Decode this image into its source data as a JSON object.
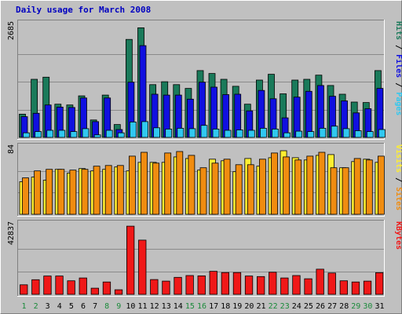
{
  "chart_data": {
    "type": "bar",
    "title": "Daily usage for March 2008",
    "categories": [
      "1",
      "2",
      "3",
      "4",
      "5",
      "6",
      "7",
      "8",
      "9",
      "10",
      "11",
      "12",
      "13",
      "14",
      "15",
      "16",
      "17",
      "18",
      "19",
      "20",
      "21",
      "22",
      "23",
      "24",
      "25",
      "26",
      "27",
      "28",
      "29",
      "30",
      "31"
    ],
    "weekend_days": [
      "1",
      "2",
      "8",
      "9",
      "15",
      "16",
      "22",
      "23",
      "29",
      "30"
    ],
    "panels": [
      {
        "id": "hits_files_pages",
        "ymax_label": "2685",
        "ylim": [
          0,
          2685
        ],
        "legend": [
          "Pages",
          "Files",
          "Hits"
        ],
        "series": [
          {
            "name": "Hits",
            "color": "#1a7a5a",
            "values": [
              560,
              1400,
              1450,
              800,
              780,
              1000,
              420,
              1020,
              310,
              2360,
              2640,
              1270,
              1340,
              1270,
              1180,
              1610,
              1540,
              1400,
              1230,
              800,
              1380,
              1520,
              1050,
              1380,
              1400,
              1500,
              1250,
              1040,
              850,
              840,
              1610
            ]
          },
          {
            "name": "Files",
            "color": "#1010e0",
            "values": [
              500,
              580,
              780,
              730,
              720,
              950,
              380,
              950,
              190,
              1330,
              2210,
              1040,
              1020,
              1020,
              920,
              1330,
              1210,
              1030,
              1040,
              640,
              1130,
              930,
              470,
              970,
              1110,
              1250,
              990,
              880,
              590,
              690,
              1180
            ]
          },
          {
            "name": "Pages",
            "color": "#30c8f0",
            "values": [
              110,
              140,
              170,
              170,
              140,
              210,
              60,
              170,
              110,
              370,
              380,
              230,
              200,
              220,
              210,
              290,
              200,
              170,
              180,
              170,
              220,
              200,
              110,
              150,
              140,
              220,
              270,
              210,
              160,
              140,
              190
            ]
          }
        ]
      },
      {
        "id": "visits_sites",
        "ymax_label": "84",
        "ylim": [
          0,
          84
        ],
        "legend": [
          "Sites",
          "Visits"
        ],
        "series": [
          {
            "name": "Visits",
            "color": "#ffee30",
            "values": [
              42,
              48,
              44,
              58,
              53,
              59,
              56,
              58,
              61,
              56,
              67,
              67,
              67,
              74,
              72,
              57,
              71,
              69,
              55,
              72,
              62,
              73,
              82,
              73,
              70,
              76,
              77,
              60,
              68,
              71,
              67
            ]
          },
          {
            "name": "Sites",
            "color": "#f08c10",
            "values": [
              47,
              56,
              58,
              58,
              57,
              58,
              62,
              63,
              63,
              75,
              80,
              66,
              79,
              81,
              76,
              60,
              66,
              71,
              64,
              64,
              71,
              79,
              74,
              70,
              75,
              80,
              60,
              60,
              72,
              70,
              75
            ]
          }
        ]
      },
      {
        "id": "kbytes",
        "ymax_label": "42837",
        "ylim": [
          0,
          42837
        ],
        "legend": [
          "KBytes"
        ],
        "series": [
          {
            "name": "KBytes",
            "color": "#f01818",
            "values": [
              6000,
              9200,
              11500,
              11500,
              8500,
              10300,
              3900,
              7800,
              2900,
              42800,
              34000,
              9300,
              8300,
              10700,
              11800,
              11600,
              14500,
              13700,
              13700,
              11500,
              11200,
              13900,
              10300,
              11800,
              9800,
              15800,
              13400,
              8500,
              7800,
              8300,
              13600
            ]
          }
        ]
      }
    ]
  }
}
